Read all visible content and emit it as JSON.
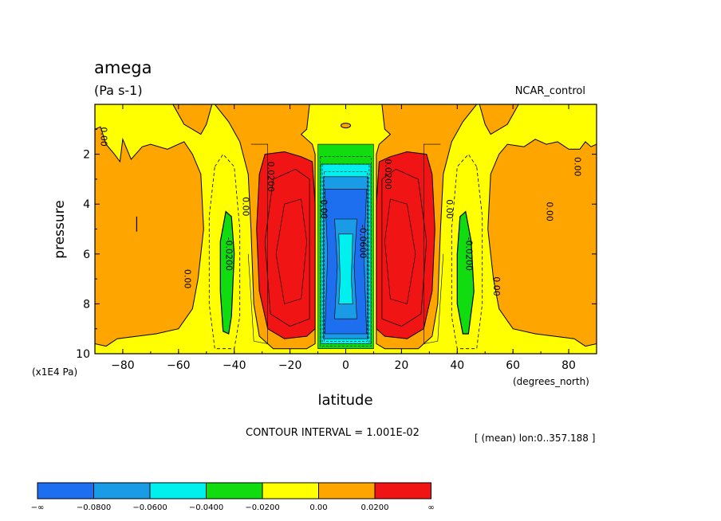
{
  "chart_data": {
    "type": "contour",
    "variable": "amega",
    "units": "(Pa s-1)",
    "dataset": "NCAR_control",
    "xlabel": "latitude",
    "x_units": "(degrees_north)",
    "ylabel": "pressure",
    "y_units": "(x1E4 Pa)",
    "xlim": [
      -90,
      90
    ],
    "ylim": [
      10,
      0
    ],
    "x_ticks": [
      -80,
      -60,
      -40,
      -20,
      0,
      20,
      40,
      60,
      80
    ],
    "x_tick_labels": [
      "−80",
      "−60",
      "−40",
      "−20",
      "0",
      "20",
      "40",
      "60",
      "80"
    ],
    "y_ticks": [
      2,
      4,
      6,
      8,
      10
    ],
    "contour_interval_text": "CONTOUR INTERVAL = 1.001E-02",
    "averaging_text": "[ (mean) lon:0..357.188 ]",
    "colorbar": {
      "labels": [
        "−∞",
        "−0.0800",
        "−0.0600",
        "−0.0400",
        "−0.0200",
        "0.00",
        "0.0200",
        "∞"
      ],
      "colors": [
        "#1e6ff0",
        "#199be6",
        "#00f0f0",
        "#10dc10",
        "#ffff00",
        "#ffa500",
        "#f01414"
      ]
    },
    "contour_labels": [
      {
        "text": "0.00",
        "lat": -87,
        "p": 1.3
      },
      {
        "text": "0.00",
        "lat": -57,
        "p": 7.0
      },
      {
        "text": "-0.0200",
        "lat": -42,
        "p": 6.0
      },
      {
        "text": "0.00",
        "lat": -36,
        "p": 4.1
      },
      {
        "text": "0.0200",
        "lat": -27,
        "p": 2.9
      },
      {
        "text": "0.00",
        "lat": -8,
        "p": 4.2
      },
      {
        "text": "-0.0600",
        "lat": 6,
        "p": 5.5
      },
      {
        "text": "0.0200",
        "lat": 15,
        "p": 2.8
      },
      {
        "text": "0.00",
        "lat": 37,
        "p": 4.2
      },
      {
        "text": "-0.0200",
        "lat": 44,
        "p": 6.0
      },
      {
        "text": "0.00",
        "lat": 54,
        "p": 7.3
      },
      {
        "text": "0.00",
        "lat": 73,
        "p": 4.3
      },
      {
        "text": "0.00",
        "lat": 83,
        "p": 2.5
      }
    ]
  }
}
